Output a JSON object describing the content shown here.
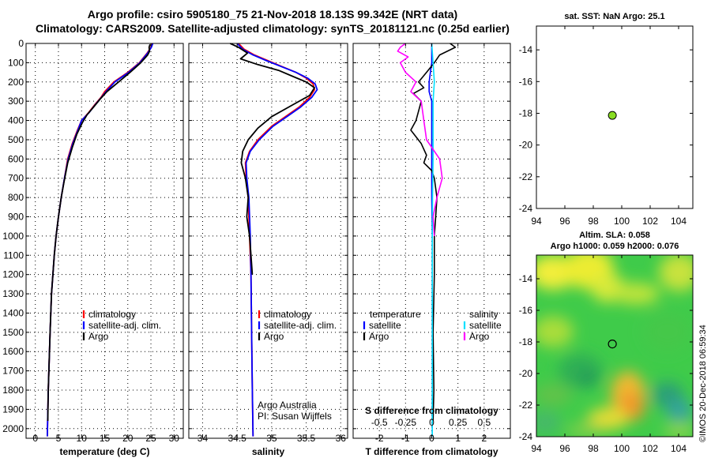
{
  "title_line1": "Argo profile: csiro 5905180_75 21-Nov-2018 18.13S 99.342E (NRT data)",
  "title_line2": "Climatology: CARS2009. Satellite-adjusted climatology: synTS_20181121.nc (0.25d earlier)",
  "stamp": "©IMOS 20-Dec-2018 06:59:34",
  "colors": {
    "climatology": "#ff0000",
    "satellite": "#0000ff",
    "argo": "#000000",
    "satellite_s": "#00e0ff",
    "argo_s": "#ff00ff",
    "grid": "#000000"
  },
  "chart_data": [
    {
      "type": "line",
      "xlabel": "temperature (deg C)",
      "ylabel": "",
      "xlim": [
        -2,
        32
      ],
      "ylim": [
        2050,
        0
      ],
      "xticks": [
        0,
        5,
        10,
        15,
        20,
        25,
        30
      ],
      "yticks": [
        0,
        100,
        200,
        300,
        400,
        500,
        600,
        700,
        800,
        900,
        1000,
        1100,
        1200,
        1300,
        1400,
        1500,
        1600,
        1700,
        1800,
        1900,
        2000
      ],
      "legend": [
        "climatology",
        "satellite-adj. clim.",
        "Argo"
      ],
      "series": [
        {
          "name": "climatology",
          "color": "#ff0000",
          "x": [
            25.2,
            25.0,
            24.2,
            22.5,
            20,
            17,
            15,
            14.2,
            12.8,
            11.5,
            10,
            9.1,
            8,
            7,
            6.3,
            5.6,
            5.0,
            4.5,
            4.1,
            3.5,
            3.2,
            2.8,
            2.6
          ],
          "y": [
            0,
            20,
            50,
            100,
            150,
            200,
            250,
            280,
            320,
            360,
            400,
            450,
            520,
            600,
            700,
            800,
            900,
            1000,
            1100,
            1300,
            1500,
            1800,
            2040
          ]
        },
        {
          "name": "satellite-adj. clim.",
          "color": "#0000ff",
          "x": [
            25.4,
            25.1,
            24.3,
            22.6,
            20.2,
            17.2,
            15.3,
            14.3,
            12.9,
            11.6,
            10,
            9.2,
            8.1,
            7.1,
            6.3,
            5.6,
            5.0,
            4.5,
            4.1,
            3.5,
            3.2,
            2.8,
            2.6
          ],
          "y": [
            0,
            20,
            50,
            100,
            150,
            200,
            250,
            280,
            320,
            360,
            400,
            450,
            520,
            600,
            700,
            800,
            900,
            1000,
            1100,
            1300,
            1500,
            1800,
            2040
          ]
        },
        {
          "name": "Argo",
          "color": "#000000",
          "x": [
            24.8,
            24.6,
            24.7,
            24.3,
            22.8,
            20.5,
            18,
            15.5,
            14,
            12.6,
            11.2,
            10.2,
            9.0,
            8.0,
            7.0,
            6.2,
            5.6,
            5.0,
            4.5,
            4.1,
            3.5,
            3.2,
            2.8,
            2.7
          ],
          "y": [
            5,
            20,
            40,
            60,
            100,
            150,
            200,
            250,
            290,
            330,
            370,
            410,
            470,
            540,
            620,
            720,
            800,
            900,
            1000,
            1100,
            1300,
            1500,
            1800,
            1960
          ]
        }
      ]
    },
    {
      "type": "line",
      "xlabel": "salinity",
      "ylabel": "",
      "xlim": [
        33.8,
        36.1
      ],
      "ylim": [
        2050,
        0
      ],
      "xticks": [
        34,
        34.5,
        35,
        35.5,
        36
      ],
      "legend": [
        "climatology",
        "satellite-adj. clim.",
        "Argo"
      ],
      "annotations": [
        "Argo Australia",
        "PI: Susan Wijffels"
      ],
      "series": [
        {
          "name": "climatology",
          "color": "#ff0000",
          "x": [
            34.52,
            34.6,
            34.75,
            34.95,
            35.15,
            35.35,
            35.5,
            35.6,
            35.62,
            35.55,
            35.4,
            35.2,
            35.0,
            34.8,
            34.68,
            34.62,
            34.63,
            34.66,
            34.68,
            34.7,
            34.71,
            34.72,
            34.73
          ],
          "y": [
            0,
            30,
            60,
            90,
            120,
            150,
            180,
            210,
            240,
            280,
            330,
            380,
            430,
            500,
            560,
            620,
            700,
            800,
            1000,
            1200,
            1500,
            1800,
            2040
          ]
        },
        {
          "name": "satellite-adj. clim.",
          "color": "#0000ff",
          "x": [
            34.5,
            34.58,
            34.73,
            34.93,
            35.14,
            35.35,
            35.52,
            35.63,
            35.66,
            35.58,
            35.42,
            35.22,
            35.02,
            34.82,
            34.69,
            34.63,
            34.64,
            34.67,
            34.69,
            34.7,
            34.71,
            34.72,
            34.73
          ],
          "y": [
            0,
            30,
            60,
            90,
            120,
            150,
            180,
            210,
            240,
            280,
            330,
            380,
            430,
            500,
            560,
            620,
            700,
            800,
            1000,
            1200,
            1500,
            1800,
            2040
          ]
        },
        {
          "name": "Argo",
          "color": "#000000",
          "x": [
            34.4,
            34.52,
            34.65,
            34.55,
            34.8,
            35.1,
            35.3,
            35.5,
            35.62,
            35.55,
            35.3,
            35.0,
            34.8,
            34.66,
            34.58,
            34.56,
            34.62,
            34.66,
            34.64,
            34.68,
            34.7,
            34.72
          ],
          "y": [
            0,
            20,
            50,
            80,
            110,
            140,
            170,
            200,
            230,
            270,
            320,
            380,
            440,
            500,
            560,
            620,
            700,
            800,
            900,
            1000,
            1100,
            1200
          ]
        }
      ]
    },
    {
      "type": "line",
      "xlabel": "T difference from climatology",
      "xlabel_top": "S difference from climatology",
      "xlim": [
        -3,
        3
      ],
      "ylim": [
        2050,
        0
      ],
      "xticks": [
        -2,
        -1,
        0,
        1,
        2
      ],
      "xticks_top": [
        -0.5,
        -0.25,
        0,
        0.25,
        0.5
      ],
      "legend_left_title": "temperature",
      "legend_right_title": "salinity",
      "legend_left": [
        "satellite",
        "Argo"
      ],
      "legend_right": [
        "satellite",
        "Argo"
      ],
      "series": [
        {
          "name": "T satellite",
          "color": "#0000ff",
          "x": [
            0,
            0,
            -0.05,
            -0.1,
            -0.1,
            0,
            0,
            0,
            0,
            0,
            0,
            0.02,
            0.02,
            0.02,
            0.02
          ],
          "y": [
            0,
            100,
            150,
            200,
            250,
            300,
            400,
            500,
            600,
            700,
            800,
            1000,
            1400,
            1800,
            2040
          ]
        },
        {
          "name": "T Argo",
          "color": "#000000",
          "x": [
            0.7,
            0.9,
            0.3,
            0.1,
            -0.2,
            -0.5,
            -0.3,
            -0.7,
            -0.4,
            -0.5,
            -0.6,
            -0.8,
            -0.4,
            -0.2,
            -0.3,
            0,
            0.1,
            0.2,
            0.15,
            0.1,
            0.1,
            0.05,
            0.08,
            0.05
          ],
          "y": [
            0,
            20,
            60,
            100,
            150,
            200,
            230,
            260,
            300,
            350,
            400,
            450,
            520,
            580,
            620,
            660,
            700,
            800,
            900,
            1000,
            1200,
            1500,
            1800,
            1960
          ]
        },
        {
          "name": "S satellite",
          "color": "#00e0ff",
          "x": [
            0,
            0.05,
            0.1,
            0.05,
            0.05,
            0.05,
            0.03,
            0.02,
            0.02,
            0.02,
            0.02,
            0.02
          ],
          "y": [
            0,
            100,
            200,
            300,
            400,
            600,
            800,
            1000,
            1200,
            1500,
            1800,
            2040
          ]
        },
        {
          "name": "S Argo",
          "color": "#ff00ff",
          "x": [
            -1.0,
            -1.2,
            -1.3,
            -0.9,
            -1.2,
            -1.0,
            -0.6,
            -0.8,
            -0.4,
            -0.3,
            -0.2,
            0.3,
            0.4,
            0.2,
            0.05,
            0.1
          ],
          "y": [
            0,
            20,
            40,
            70,
            100,
            150,
            200,
            250,
            300,
            400,
            500,
            600,
            700,
            800,
            900,
            1000
          ]
        }
      ]
    },
    {
      "type": "scatter",
      "title": "sat. SST: NaN Argo: 25.1",
      "xlim": [
        94,
        105
      ],
      "ylim": [
        -24,
        -12.5
      ],
      "xticks": [
        94,
        96,
        98,
        100,
        102,
        104
      ],
      "yticks": [
        -14,
        -16,
        -18,
        -20,
        -22,
        -24
      ],
      "points": [
        {
          "x": 99.34,
          "y": -18.13
        }
      ]
    },
    {
      "type": "heatmap",
      "title_line1": "Altim. SLA: 0.058",
      "title_line2": "Argo h1000: 0.059 h2000: 0.076",
      "xlim": [
        94,
        105
      ],
      "ylim": [
        -24,
        -12.5
      ],
      "xticks": [
        94,
        96,
        98,
        100,
        102,
        104
      ],
      "yticks": [
        -14,
        -16,
        -18,
        -20,
        -22,
        -24
      ],
      "points": [
        {
          "x": 99.34,
          "y": -18.13
        }
      ]
    }
  ]
}
